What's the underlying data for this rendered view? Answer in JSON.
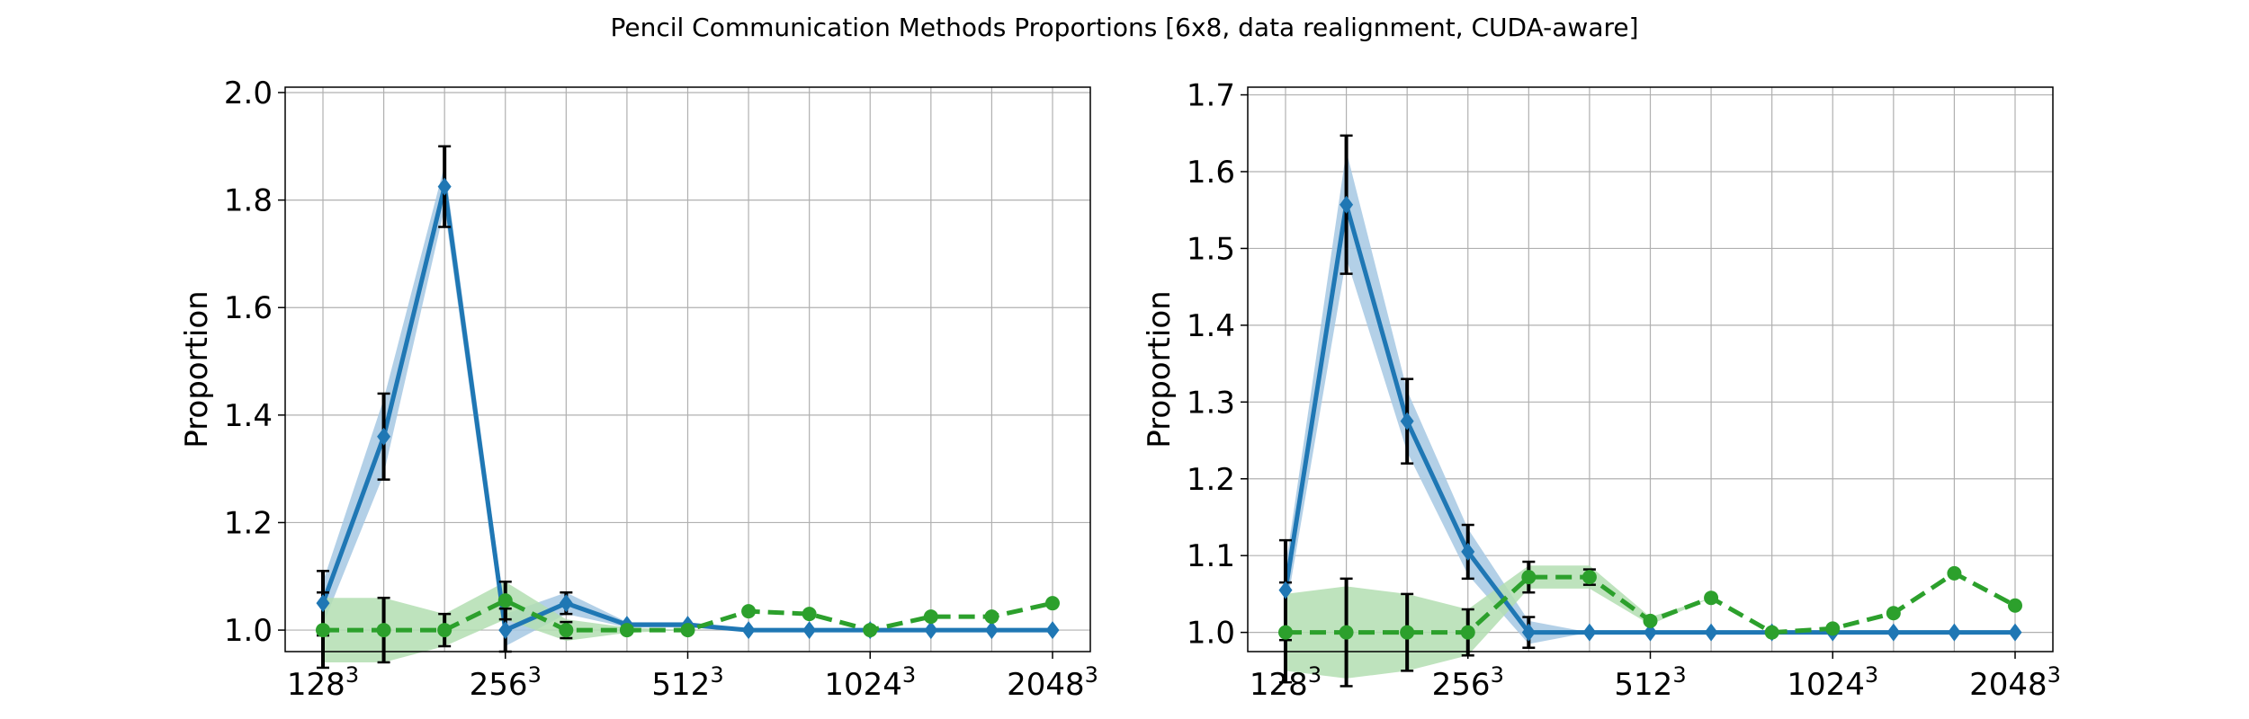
{
  "title": "Pencil Communication Methods Proportions [6x8, data realignment, CUDA-aware]",
  "colors": {
    "blue": "#1f77b4",
    "blue_band": "#a6c8e3",
    "green": "#2ca02c",
    "green_band": "#b3deb1",
    "error_bar": "#000000",
    "grid": "#b0b0b0",
    "axes": "#000000"
  },
  "chart_data": [
    {
      "type": "line",
      "ylabel": "Proportion",
      "xlabel": "",
      "x_scale": "log2",
      "x": [
        128,
        161.27,
        203.19,
        256,
        322.54,
        406.37,
        512,
        645.08,
        812.75,
        1024,
        1290.16,
        1625.5,
        2048
      ],
      "xticks": [
        {
          "value": 128,
          "base": "128",
          "exp": "3"
        },
        {
          "value": 256,
          "base": "256",
          "exp": "3"
        },
        {
          "value": 512,
          "base": "512",
          "exp": "3"
        },
        {
          "value": 1024,
          "base": "1024",
          "exp": "3"
        },
        {
          "value": 2048,
          "base": "2048",
          "exp": "3"
        }
      ],
      "ylim": [
        0.96,
        2.01
      ],
      "yticks": [
        {
          "value": 1.0,
          "label": "1.0"
        },
        {
          "value": 1.2,
          "label": "1.2"
        },
        {
          "value": 1.4,
          "label": "1.4"
        },
        {
          "value": 1.6,
          "label": "1.6"
        },
        {
          "value": 1.8,
          "label": "1.8"
        },
        {
          "value": 2.0,
          "label": "2.0"
        }
      ],
      "grid": true,
      "series": [
        {
          "style": "solid",
          "marker": "diamond",
          "color": "#1f77b4",
          "values": [
            1.05,
            1.36,
            1.825,
            1.0,
            1.05,
            1.01,
            1.01,
            1.0,
            1.0,
            1.0,
            1.0,
            1.0,
            1.0
          ],
          "err": [
            0.06,
            0.08,
            0.075,
            0.04,
            0.02,
            0.0,
            0.0,
            0.0,
            0.0,
            0.0,
            0.0,
            0.0,
            0.0
          ],
          "band": [
            0.04,
            0.07,
            0.04,
            0.03,
            0.02,
            0.005,
            0.005,
            0.0,
            0.0,
            0.0,
            0.0,
            0.0,
            0.0
          ]
        },
        {
          "style": "dashed",
          "marker": "circle",
          "color": "#2ca02c",
          "values": [
            1.0,
            1.0,
            1.0,
            1.055,
            1.0,
            1.0,
            1.0,
            1.035,
            1.03,
            1.0,
            1.025,
            1.025,
            1.05
          ],
          "err": [
            0.07,
            0.06,
            0.03,
            0.035,
            0.015,
            0.0,
            0.0,
            0.0,
            0.0,
            0.0,
            0.0,
            0.0,
            0.0
          ],
          "band": [
            0.06,
            0.06,
            0.03,
            0.035,
            0.02,
            0.005,
            0.0,
            0.0,
            0.0,
            0.0,
            0.0,
            0.0,
            0.0
          ]
        }
      ]
    },
    {
      "type": "line",
      "ylabel": "Proportion",
      "xlabel": "",
      "x_scale": "log2",
      "x": [
        128,
        161.27,
        203.19,
        256,
        322.54,
        406.37,
        512,
        645.08,
        812.75,
        1024,
        1290.16,
        1625.5,
        2048
      ],
      "xticks": [
        {
          "value": 128,
          "base": "128",
          "exp": "3"
        },
        {
          "value": 256,
          "base": "256",
          "exp": "3"
        },
        {
          "value": 512,
          "base": "512",
          "exp": "3"
        },
        {
          "value": 1024,
          "base": "1024",
          "exp": "3"
        },
        {
          "value": 2048,
          "base": "2048",
          "exp": "3"
        }
      ],
      "ylim": [
        0.975,
        1.71
      ],
      "yticks": [
        {
          "value": 1.0,
          "label": "1.0"
        },
        {
          "value": 1.1,
          "label": "1.1"
        },
        {
          "value": 1.2,
          "label": "1.2"
        },
        {
          "value": 1.3,
          "label": "1.3"
        },
        {
          "value": 1.4,
          "label": "1.4"
        },
        {
          "value": 1.5,
          "label": "1.5"
        },
        {
          "value": 1.6,
          "label": "1.6"
        },
        {
          "value": 1.7,
          "label": "1.7"
        }
      ],
      "grid": true,
      "series": [
        {
          "style": "solid",
          "marker": "diamond",
          "color": "#1f77b4",
          "values": [
            1.055,
            1.557,
            1.275,
            1.105,
            1.0,
            1.0,
            1.0,
            1.0,
            1.0,
            1.0,
            1.0,
            1.0,
            1.0
          ],
          "err": [
            0.065,
            0.09,
            0.055,
            0.035,
            0.02,
            0.0,
            0.0,
            0.0,
            0.0,
            0.0,
            0.0,
            0.0,
            0.0
          ],
          "band": [
            0.03,
            0.07,
            0.04,
            0.03,
            0.015,
            0.0,
            0.0,
            0.0,
            0.0,
            0.0,
            0.0,
            0.0,
            0.0
          ]
        },
        {
          "style": "dashed",
          "marker": "circle",
          "color": "#2ca02c",
          "values": [
            1.0,
            1.0,
            1.0,
            1.0,
            1.072,
            1.072,
            1.015,
            1.045,
            1.0,
            1.005,
            1.025,
            1.077,
            1.035
          ],
          "err": [
            0.065,
            0.07,
            0.05,
            0.03,
            0.02,
            0.01,
            0.0,
            0.0,
            0.0,
            0.0,
            0.0,
            0.0,
            0.0
          ],
          "band": [
            0.05,
            0.06,
            0.05,
            0.03,
            0.015,
            0.015,
            0.005,
            0.0,
            0.0,
            0.0,
            0.0,
            0.0,
            0.0
          ]
        }
      ]
    }
  ]
}
